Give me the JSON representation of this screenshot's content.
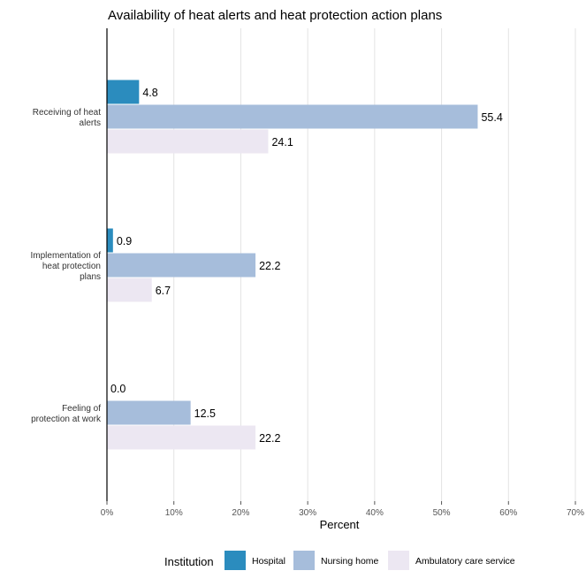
{
  "chart_data": {
    "type": "bar",
    "orientation": "horizontal",
    "title": "Availability of heat alerts and heat protection action plans",
    "xlabel": "Percent",
    "ylabel": "",
    "xlim": [
      0,
      70
    ],
    "x_ticks": [
      0,
      10,
      20,
      30,
      40,
      50,
      60,
      70
    ],
    "x_tick_labels": [
      "0%",
      "10%",
      "20%",
      "30%",
      "40%",
      "50%",
      "60%",
      "70%"
    ],
    "grid": "vertical major lines",
    "categories": [
      [
        "Receiving of heat",
        "alerts"
      ],
      [
        "Implementation of",
        "heat protection",
        "plans"
      ],
      [
        "Feeling of",
        "protection at work"
      ]
    ],
    "series": [
      {
        "name": "Hospital",
        "color": "#2b8cbe",
        "values": [
          4.8,
          0.9,
          0.0
        ],
        "labels": [
          "4.8",
          "0.9",
          "0.0"
        ]
      },
      {
        "name": "Nursing home",
        "color": "#a6bddb",
        "values": [
          55.4,
          22.2,
          12.5
        ],
        "labels": [
          "55.4",
          "22.2",
          "12.5"
        ]
      },
      {
        "name": "Ambulatory care service",
        "color": "#ece7f2",
        "values": [
          24.1,
          6.7,
          22.2
        ],
        "labels": [
          "24.1",
          "6.7",
          "22.2"
        ]
      }
    ],
    "legend": {
      "title": "Institution",
      "position": "bottom"
    }
  }
}
